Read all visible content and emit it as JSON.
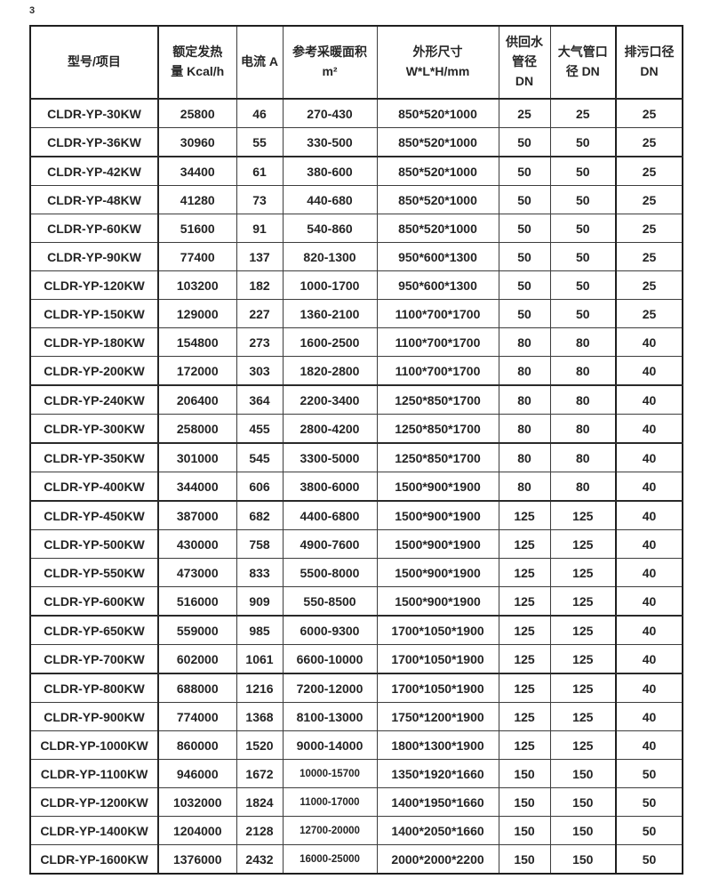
{
  "page": {
    "number": "3"
  },
  "colors": {
    "text": "#262626",
    "grid": "#3d3d3d",
    "background": "#ffffff"
  },
  "table": {
    "columns": [
      {
        "key": "model",
        "lines": [
          "型号/项目"
        ]
      },
      {
        "key": "rated-heat",
        "lines": [
          "额定发热",
          "量 Kcal/h"
        ]
      },
      {
        "key": "current",
        "lines": [
          "电流 A"
        ]
      },
      {
        "key": "heating-area",
        "lines": [
          "参考采暖面积",
          "m²"
        ]
      },
      {
        "key": "dimensions",
        "lines": [
          "外形尺寸",
          "W*L*H/mm"
        ]
      },
      {
        "key": "supply-return-pipe-dn",
        "lines": [
          "供回水",
          "管径",
          "DN"
        ]
      },
      {
        "key": "air-pipe-dn",
        "lines": [
          "大气管口",
          "径 DN"
        ]
      },
      {
        "key": "drain-dn",
        "lines": [
          "排污口径",
          "DN"
        ]
      }
    ],
    "rows": [
      [
        "CLDR-YP-30KW",
        "25800",
        "46",
        "270-430",
        "850*520*1000",
        "25",
        "25",
        "25"
      ],
      [
        "CLDR-YP-36KW",
        "30960",
        "55",
        "330-500",
        "850*520*1000",
        "50",
        "50",
        "25"
      ],
      [
        "CLDR-YP-42KW",
        "34400",
        "61",
        "380-600",
        "850*520*1000",
        "50",
        "50",
        "25"
      ],
      [
        "CLDR-YP-48KW",
        "41280",
        "73",
        "440-680",
        "850*520*1000",
        "50",
        "50",
        "25"
      ],
      [
        "CLDR-YP-60KW",
        "51600",
        "91",
        "540-860",
        "850*520*1000",
        "50",
        "50",
        "25"
      ],
      [
        "CLDR-YP-90KW",
        "77400",
        "137",
        "820-1300",
        "950*600*1300",
        "50",
        "50",
        "25"
      ],
      [
        "CLDR-YP-120KW",
        "103200",
        "182",
        "1000-1700",
        "950*600*1300",
        "50",
        "50",
        "25"
      ],
      [
        "CLDR-YP-150KW",
        "129000",
        "227",
        "1360-2100",
        "1100*700*1700",
        "50",
        "50",
        "25"
      ],
      [
        "CLDR-YP-180KW",
        "154800",
        "273",
        "1600-2500",
        "1100*700*1700",
        "80",
        "80",
        "40"
      ],
      [
        "CLDR-YP-200KW",
        "172000",
        "303",
        "1820-2800",
        "1100*700*1700",
        "80",
        "80",
        "40"
      ],
      [
        "CLDR-YP-240KW",
        "206400",
        "364",
        "2200-3400",
        "1250*850*1700",
        "80",
        "80",
        "40"
      ],
      [
        "CLDR-YP-300KW",
        "258000",
        "455",
        "2800-4200",
        "1250*850*1700",
        "80",
        "80",
        "40"
      ],
      [
        "CLDR-YP-350KW",
        "301000",
        "545",
        "3300-5000",
        "1250*850*1700",
        "80",
        "80",
        "40"
      ],
      [
        "CLDR-YP-400KW",
        "344000",
        "606",
        "3800-6000",
        "1500*900*1900",
        "80",
        "80",
        "40"
      ],
      [
        "CLDR-YP-450KW",
        "387000",
        "682",
        "4400-6800",
        "1500*900*1900",
        "125",
        "125",
        "40"
      ],
      [
        "CLDR-YP-500KW",
        "430000",
        "758",
        "4900-7600",
        "1500*900*1900",
        "125",
        "125",
        "40"
      ],
      [
        "CLDR-YP-550KW",
        "473000",
        "833",
        "5500-8000",
        "1500*900*1900",
        "125",
        "125",
        "40"
      ],
      [
        "CLDR-YP-600KW",
        "516000",
        "909",
        "550-8500",
        "1500*900*1900",
        "125",
        "125",
        "40"
      ],
      [
        "CLDR-YP-650KW",
        "559000",
        "985",
        "6000-9300",
        "1700*1050*1900",
        "125",
        "125",
        "40"
      ],
      [
        "CLDR-YP-700KW",
        "602000",
        "1061",
        "6600-10000",
        "1700*1050*1900",
        "125",
        "125",
        "40"
      ],
      [
        "CLDR-YP-800KW",
        "688000",
        "1216",
        "7200-12000",
        "1700*1050*1900",
        "125",
        "125",
        "40"
      ],
      [
        "CLDR-YP-900KW",
        "774000",
        "1368",
        "8100-13000",
        "1750*1200*1900",
        "125",
        "125",
        "40"
      ],
      [
        "CLDR-YP-1000KW",
        "860000",
        "1520",
        "9000-14000",
        "1800*1300*1900",
        "125",
        "125",
        "40"
      ],
      [
        "CLDR-YP-1100KW",
        "946000",
        "1672",
        "10000-15700",
        "1350*1920*1660",
        "150",
        "150",
        "50"
      ],
      [
        "CLDR-YP-1200KW",
        "1032000",
        "1824",
        "11000-17000",
        "1400*1950*1660",
        "150",
        "150",
        "50"
      ],
      [
        "CLDR-YP-1400KW",
        "1204000",
        "2128",
        "12700-20000",
        "1400*2050*1660",
        "150",
        "150",
        "50"
      ],
      [
        "CLDR-YP-1600KW",
        "1376000",
        "2432",
        "16000-25000",
        "2000*2000*2200",
        "150",
        "150",
        "50"
      ]
    ]
  }
}
